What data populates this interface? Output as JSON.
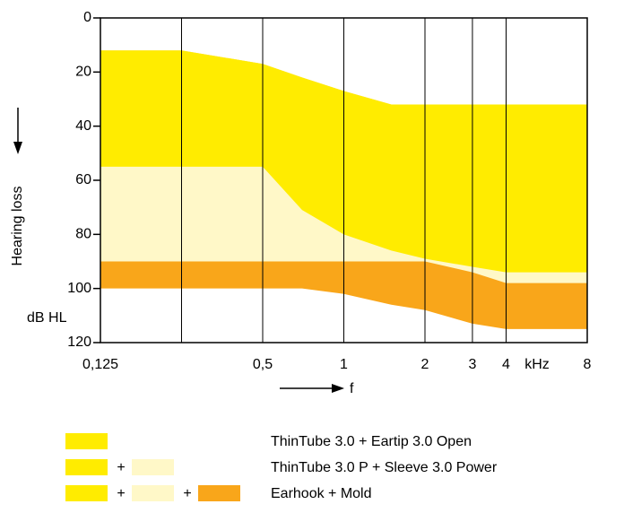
{
  "chart_data": {
    "type": "area",
    "y_label": "Hearing loss",
    "y_unit": "dB HL",
    "x_label": "f",
    "x_unit": "kHz",
    "x": [
      0.125,
      0.25,
      0.5,
      0.7,
      1,
      1.5,
      2,
      3,
      4,
      8
    ],
    "top_values": [
      12,
      12,
      17,
      22,
      27,
      32,
      32,
      32,
      32,
      32
    ],
    "series": [
      {
        "name": "ThinTube 3.0 + Eartip 3.0 Open",
        "color": "#ffec00",
        "values": [
          55,
          55,
          55,
          71,
          80,
          86,
          89,
          92,
          94,
          94
        ]
      },
      {
        "name": "ThinTube 3.0 P + Sleeve 3.0 Power",
        "color": "#fff8c8",
        "values": [
          90,
          90,
          90,
          90,
          90,
          90,
          90,
          94,
          98,
          98
        ]
      },
      {
        "name": "Earhook + Mold",
        "color": "#f9a61a",
        "values": [
          100,
          100,
          100,
          100,
          102,
          106,
          108,
          113,
          115,
          115
        ]
      }
    ],
    "legend_joiner": "+",
    "xscale": "log",
    "xlim": [
      0.125,
      8
    ],
    "xticks": [
      {
        "value": 0.125,
        "label": "0,125"
      },
      {
        "value": 0.25,
        "label": null
      },
      {
        "value": 0.5,
        "label": "0,5"
      },
      1,
      2,
      3,
      4,
      8
    ],
    "ylim": [
      0,
      120
    ],
    "yticks": [
      0,
      20,
      40,
      60,
      80,
      100,
      120
    ],
    "y_inverted": true,
    "grid": "x"
  }
}
